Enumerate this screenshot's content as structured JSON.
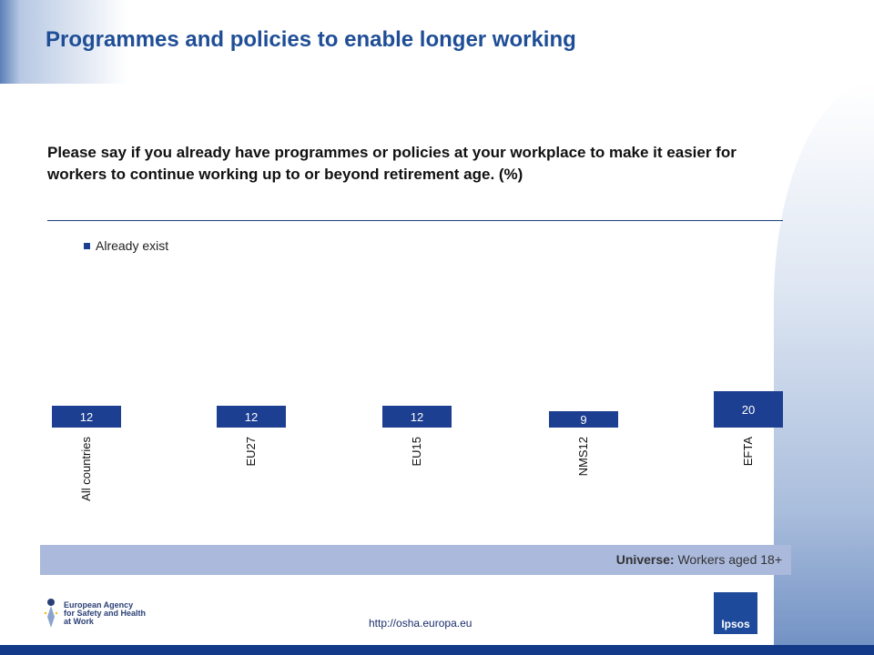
{
  "header": {
    "title": "Programmes and policies to enable longer working"
  },
  "question": "Please say if you already have programmes or policies at your workplace to make it easier for workers to continue working up to or beyond retirement age. (%)",
  "chart_data": {
    "type": "bar",
    "categories": [
      "All countries",
      "EU27",
      "EU15",
      "NMS12",
      "EFTA"
    ],
    "series": [
      {
        "name": "Already exist",
        "values": [
          12,
          12,
          12,
          9,
          20
        ],
        "color": "#1d3f91"
      }
    ],
    "data_labels": [
      "12",
      "12",
      "12",
      "9",
      "20"
    ],
    "legend_position": "top-left",
    "grid": false,
    "ylim": [
      0,
      20
    ]
  },
  "universe": {
    "label": "Universe:",
    "value": "Workers aged 18+"
  },
  "footer": {
    "logo_lines": [
      "European Agency",
      "for Safety and Health",
      "at Work"
    ],
    "url": "http://osha.europa.eu",
    "ipsos": "Ipsos"
  }
}
